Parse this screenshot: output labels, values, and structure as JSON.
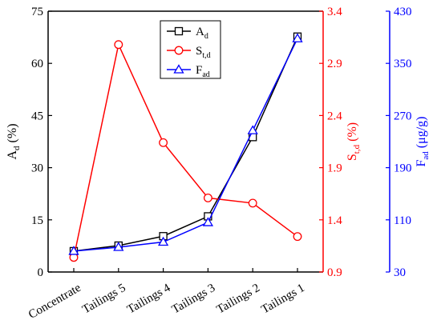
{
  "chart_data": {
    "type": "line",
    "categories": [
      "Concentrate",
      "Tailings 5",
      "Tailings 4",
      "Tailings 3",
      "Tailings 2",
      "Tailings 1"
    ],
    "axes": {
      "left": {
        "label_main": "A",
        "label_sub": "d",
        "label_unit": " (%)",
        "ylim": [
          0,
          75
        ],
        "ticks": [
          0,
          15,
          30,
          45,
          60,
          75
        ],
        "tick_labels": [
          "0",
          "15",
          "30",
          "45",
          "60",
          "75"
        ],
        "color": "#000000"
      },
      "right1": {
        "label_main": "S",
        "label_sub": "t,d",
        "label_unit": " (%)",
        "ylim": [
          0.9,
          3.4
        ],
        "ticks": [
          0.9,
          1.4,
          1.9,
          2.4,
          2.9,
          3.4
        ],
        "tick_labels": [
          "0.9",
          "1.4",
          "1.9",
          "2.4",
          "2.9",
          "3.4"
        ],
        "color": "#ff0000"
      },
      "right2": {
        "label_main": "F",
        "label_sub": "ad",
        "label_unit": " (μg/g)",
        "ylim": [
          30,
          430
        ],
        "ticks": [
          30,
          110,
          190,
          270,
          350,
          430
        ],
        "tick_labels": [
          "30",
          "110",
          "190",
          "270",
          "350",
          "430"
        ],
        "color": "#0000ff"
      }
    },
    "series": [
      {
        "name_main": "A",
        "name_sub": "d",
        "axis": "left",
        "color": "#000000",
        "marker": "square",
        "values": [
          6.0,
          7.6,
          10.3,
          16.0,
          38.8,
          67.7
        ]
      },
      {
        "name_main": "S",
        "name_sub": "t,d",
        "axis": "right1",
        "color": "#ff0000",
        "marker": "circle",
        "values": [
          1.04,
          3.08,
          2.14,
          1.61,
          1.56,
          1.24
        ]
      },
      {
        "name_main": "F",
        "name_sub": "ad",
        "axis": "right2",
        "color": "#0000ff",
        "marker": "triangle",
        "values": [
          62,
          68,
          76,
          106,
          247,
          388
        ]
      }
    ],
    "legend": "top-center",
    "grid": false
  }
}
